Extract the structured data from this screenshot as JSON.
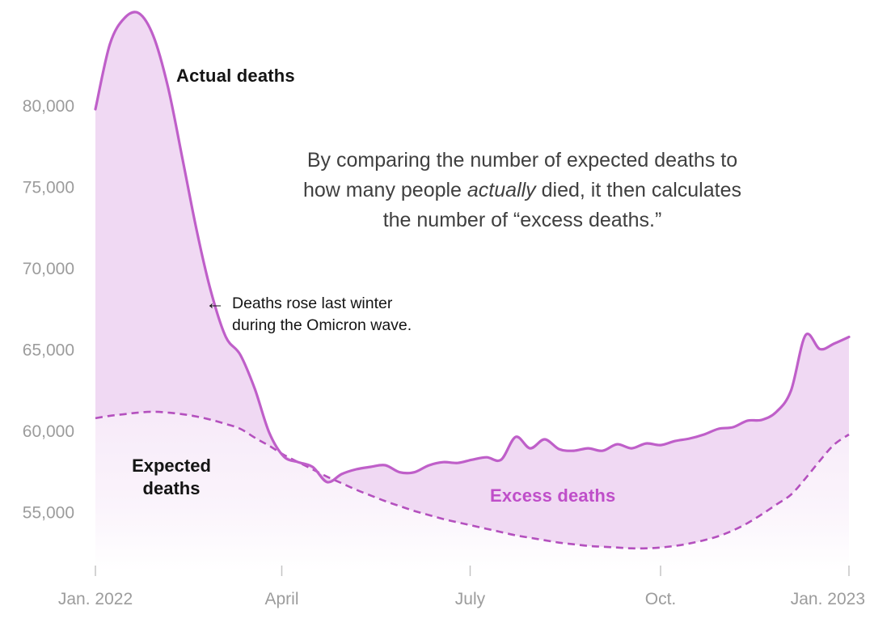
{
  "chart_data": {
    "type": "area",
    "title": "",
    "x_axis": {
      "tick_labels": [
        "Jan. 2022",
        "April",
        "July",
        "Oct.",
        "Jan. 2023"
      ],
      "tick_weeks": [
        0,
        12.86,
        25.86,
        39.0,
        52
      ]
    },
    "y_axis": {
      "ticks": [
        55000,
        60000,
        65000,
        70000,
        75000,
        80000
      ],
      "tick_labels": [
        "55,000",
        "60,000",
        "65,000",
        "70,000",
        "75,000",
        "80,000"
      ],
      "ylim": [
        52500,
        86000
      ],
      "grid": false
    },
    "x_unit": "weeks from Jan. 2022",
    "series": [
      {
        "name": "Actual deaths",
        "line_style": "solid",
        "values": [
          79800,
          83800,
          85400,
          85700,
          84300,
          81200,
          76800,
          72300,
          68500,
          65800,
          64700,
          62600,
          59900,
          58450,
          58100,
          57800,
          56870,
          57370,
          57660,
          57810,
          57910,
          57480,
          57480,
          57900,
          58100,
          58050,
          58250,
          58400,
          58250,
          59650,
          58950,
          59500,
          58900,
          58800,
          58950,
          58800,
          59200,
          58950,
          59250,
          59150,
          59400,
          59550,
          59800,
          60150,
          60250,
          60650,
          60700,
          61200,
          62500,
          65900,
          65050,
          65400,
          65800
        ]
      },
      {
        "name": "Expected deaths",
        "line_style": "dashed",
        "values": [
          60800,
          60950,
          61050,
          61150,
          61200,
          61150,
          61050,
          60900,
          60700,
          60450,
          60150,
          59600,
          59100,
          58550,
          58100,
          57650,
          57200,
          56800,
          56400,
          56050,
          55700,
          55400,
          55100,
          54850,
          54600,
          54400,
          54200,
          54000,
          53800,
          53600,
          53450,
          53300,
          53150,
          53050,
          52950,
          52900,
          52850,
          52800,
          52800,
          52850,
          52950,
          53100,
          53300,
          53550,
          53900,
          54350,
          54900,
          55500,
          56100,
          57100,
          58200,
          59200,
          59800
        ]
      }
    ],
    "colors": {
      "actual_line": "#bf5fc9",
      "expected_line": "#b450be",
      "fill": "#f0d9f3",
      "excess_label": "#bf4ec9",
      "axis_text": "#9c9c9c",
      "tick_mark": "#c4c4c4",
      "explainer_text": "#3f3f3f",
      "label_text": "#141414"
    },
    "legend_position": "inline-annotations"
  },
  "annotations": {
    "actual_label": "Actual deaths",
    "expected_label_lines": [
      "Expected",
      "deaths"
    ],
    "excess_label": "Excess deaths",
    "paragraph": {
      "line1": "By comparing the number of expected deaths to",
      "line2_pre": "how many people ",
      "line2_italic": "actually",
      "line2_post": " died, it then calculates",
      "line3": "the number of “excess deaths.”"
    },
    "omicron": {
      "arrow": "←",
      "line1": "Deaths rose last winter",
      "line2": "during the Omicron wave."
    }
  }
}
